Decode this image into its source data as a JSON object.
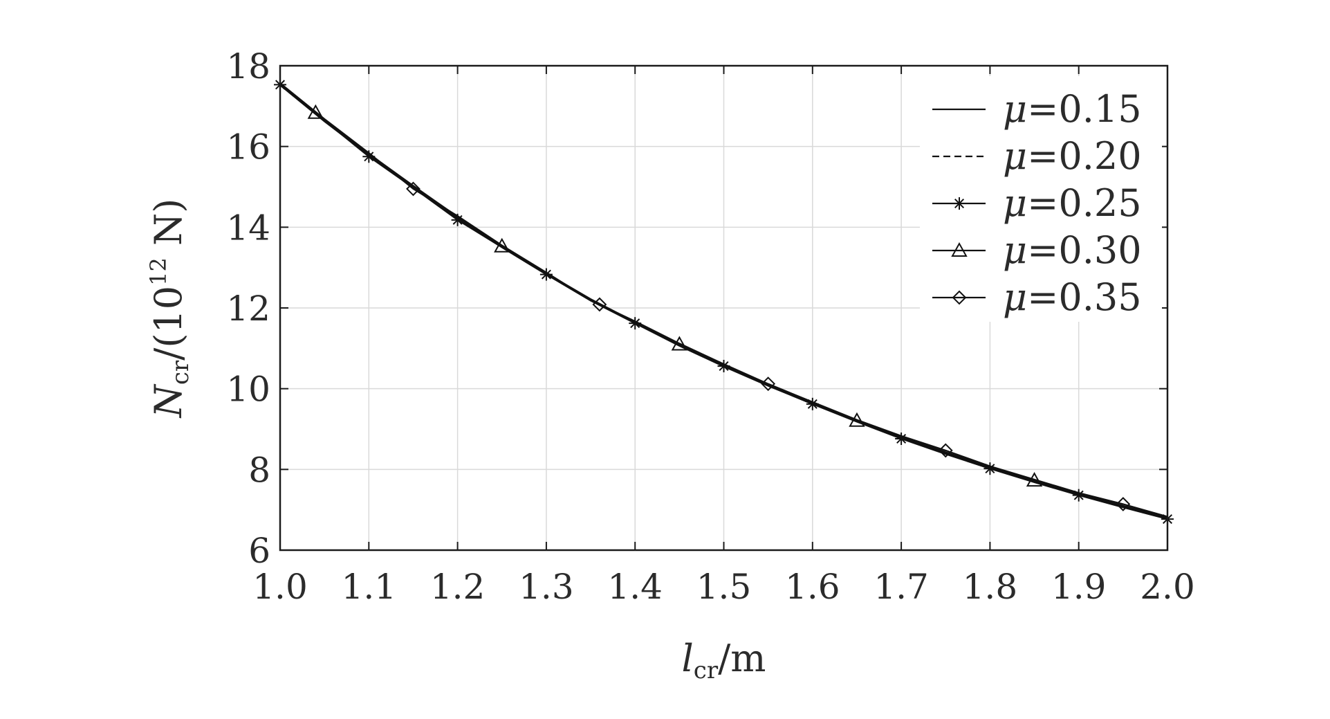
{
  "chart_data": {
    "type": "line",
    "xlabel": {
      "main": "l",
      "sub": "cr",
      "rest": "/m"
    },
    "ylabel": {
      "main": "N",
      "sub": "cr",
      "mid": "/(10",
      "sup": "12",
      "end": " N)"
    },
    "xlim": [
      1.0,
      2.0
    ],
    "ylim": [
      6,
      18
    ],
    "xticks": [
      "1.0",
      "1.1",
      "1.2",
      "1.3",
      "1.4",
      "1.5",
      "1.6",
      "1.7",
      "1.8",
      "1.9",
      "2.0"
    ],
    "yticks": [
      "6",
      "8",
      "10",
      "12",
      "14",
      "16",
      "18"
    ],
    "grid": true,
    "legend_position": "top-right",
    "x": [
      1.0,
      1.05,
      1.1,
      1.15,
      1.2,
      1.25,
      1.3,
      1.35,
      1.4,
      1.45,
      1.5,
      1.55,
      1.6,
      1.65,
      1.7,
      1.75,
      1.8,
      1.85,
      1.9,
      1.95,
      2.0
    ],
    "series": [
      {
        "name": "μ=0.15",
        "greek": "μ",
        "value_text": "=0.15",
        "style": "solid",
        "marker": "none",
        "values": [
          17.52,
          16.62,
          15.78,
          15.0,
          14.22,
          13.5,
          12.83,
          12.18,
          11.62,
          11.06,
          10.55,
          10.07,
          9.62,
          9.19,
          8.78,
          8.4,
          8.03,
          7.7,
          7.37,
          7.07,
          6.78
        ]
      },
      {
        "name": "μ=0.20",
        "greek": "μ",
        "value_text": "=0.20",
        "style": "dashed",
        "marker": "none",
        "values": [
          17.52,
          16.63,
          15.79,
          15.01,
          14.23,
          13.51,
          12.84,
          12.19,
          11.63,
          11.07,
          10.56,
          10.08,
          9.63,
          9.2,
          8.79,
          8.41,
          8.04,
          7.71,
          7.38,
          7.08,
          6.79
        ]
      },
      {
        "name": "μ=0.25",
        "greek": "μ",
        "value_text": "=0.25",
        "style": "solid",
        "marker": "star",
        "marker_x": [
          1.0,
          1.1,
          1.2,
          1.3,
          1.4,
          1.5,
          1.6,
          1.7,
          1.8,
          1.9,
          2.0
        ],
        "values": [
          17.53,
          16.64,
          15.75,
          14.98,
          14.18,
          13.5,
          12.83,
          12.2,
          11.62,
          11.08,
          10.56,
          10.08,
          9.62,
          9.18,
          8.76,
          8.38,
          8.02,
          7.68,
          7.36,
          7.06,
          6.77
        ]
      },
      {
        "name": "μ=0.30",
        "greek": "μ",
        "value_text": "=0.30",
        "style": "solid",
        "marker": "triangle",
        "marker_x": [
          1.04,
          1.25,
          1.45,
          1.65,
          1.85
        ],
        "values": [
          17.55,
          16.66,
          15.82,
          15.03,
          14.26,
          13.53,
          12.86,
          12.22,
          11.65,
          11.1,
          10.59,
          10.1,
          9.65,
          9.21,
          8.81,
          8.43,
          8.06,
          7.73,
          7.4,
          7.1,
          6.81
        ]
      },
      {
        "name": "μ=0.35",
        "greek": "μ",
        "value_text": "=0.35",
        "style": "solid",
        "marker": "diamond",
        "marker_x": [
          1.15,
          1.36,
          1.55,
          1.75,
          1.95
        ],
        "values": [
          17.57,
          16.68,
          15.84,
          14.95,
          14.28,
          13.55,
          12.88,
          12.19,
          11.67,
          11.12,
          10.61,
          10.12,
          9.67,
          9.23,
          8.83,
          8.47,
          8.08,
          7.75,
          7.42,
          7.14,
          6.83
        ]
      }
    ]
  }
}
